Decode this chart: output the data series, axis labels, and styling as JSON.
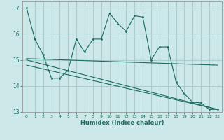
{
  "xlabel": "Humidex (Indice chaleur)",
  "ylabel": "",
  "background_color": "#cce8e8",
  "grid_color": "#aacccc",
  "line_color": "#1a6b60",
  "xlim": [
    -0.5,
    23.5
  ],
  "ylim": [
    13.0,
    17.25
  ],
  "yticks": [
    13,
    14,
    15,
    16,
    17
  ],
  "xticks": [
    0,
    1,
    2,
    3,
    4,
    5,
    6,
    7,
    8,
    9,
    10,
    11,
    12,
    13,
    14,
    15,
    16,
    17,
    18,
    19,
    20,
    21,
    22,
    23
  ],
  "series1_x": [
    0,
    1,
    2,
    3,
    4,
    5,
    6,
    7,
    8,
    9,
    10,
    11,
    12,
    13,
    14,
    15,
    16,
    17,
    18,
    19,
    20,
    21,
    22,
    23
  ],
  "series1_y": [
    17.0,
    15.8,
    15.2,
    14.3,
    14.3,
    14.6,
    15.8,
    15.3,
    15.8,
    15.8,
    16.8,
    16.4,
    16.1,
    16.7,
    16.65,
    15.0,
    15.5,
    15.5,
    14.15,
    13.7,
    13.38,
    13.35,
    13.1,
    13.1
  ],
  "line1_x": [
    0,
    23
  ],
  "line1_y": [
    15.05,
    14.8
  ],
  "line2_x": [
    0,
    23
  ],
  "line2_y": [
    15.0,
    13.1
  ],
  "line3_x": [
    0,
    23
  ],
  "line3_y": [
    14.8,
    13.1
  ]
}
